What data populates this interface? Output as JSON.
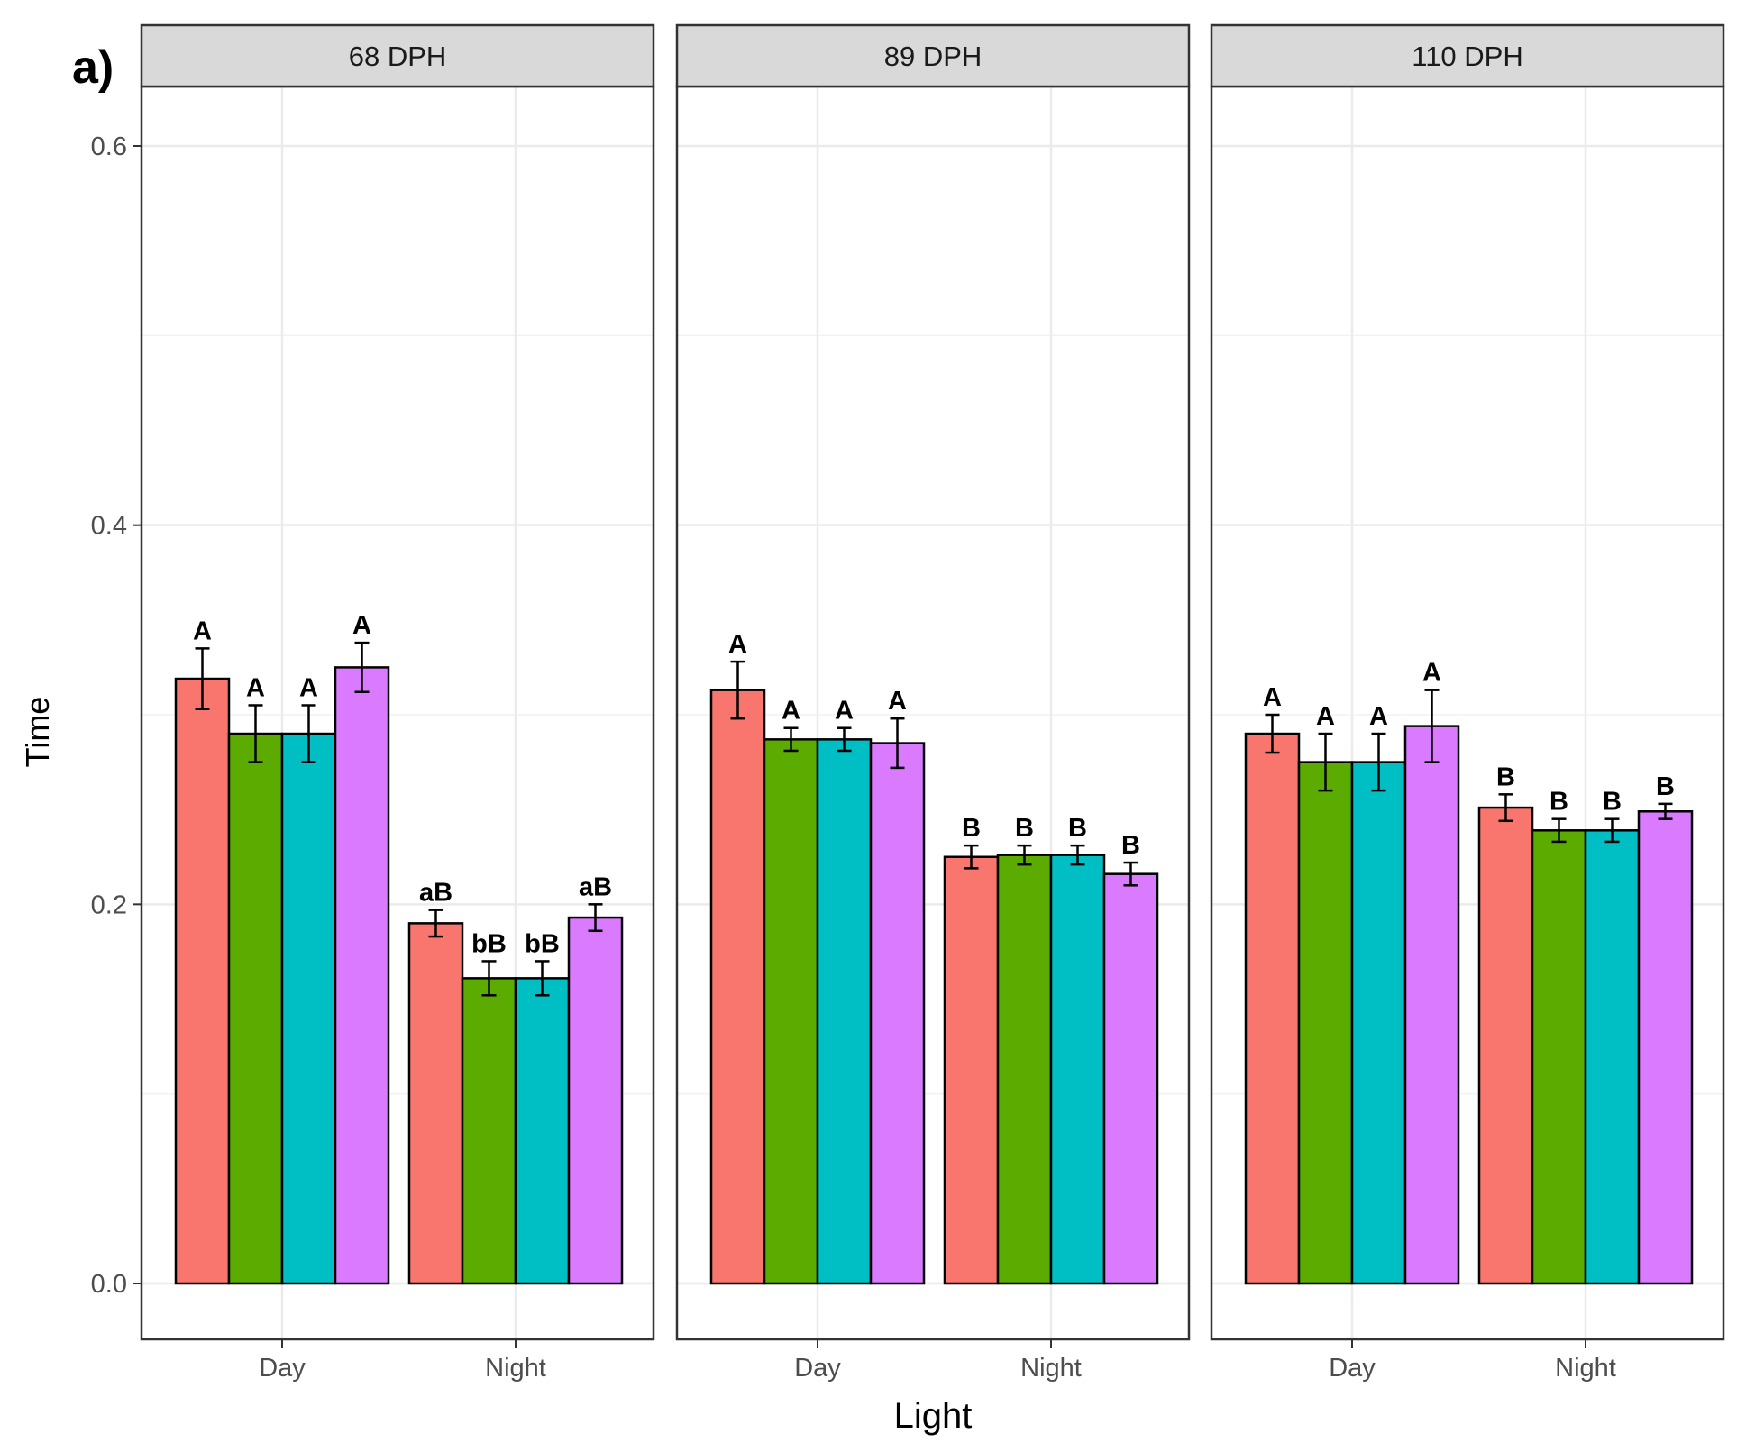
{
  "figure_label": "a)",
  "chart_data": {
    "type": "bar",
    "xlabel": "Light",
    "ylabel": "Time",
    "ylim": [
      0,
      0.63
    ],
    "yticks": [
      0.0,
      0.2,
      0.4,
      0.6
    ],
    "ytick_labels": [
      "0.0",
      "0.2",
      "0.4",
      "0.6"
    ],
    "categories": [
      "Day",
      "Night"
    ],
    "series_colors": [
      "#F8766D",
      "#5BAB00",
      "#00BFC4",
      "#D97AFF"
    ],
    "facets": [
      {
        "title": "68 DPH",
        "groups": [
          {
            "category": "Day",
            "values": [
              0.319,
              0.29,
              0.29,
              0.325
            ],
            "errors": [
              0.016,
              0.015,
              0.015,
              0.013
            ],
            "labels": [
              "A",
              "A",
              "A",
              "A"
            ]
          },
          {
            "category": "Night",
            "values": [
              0.19,
              0.161,
              0.161,
              0.193
            ],
            "errors": [
              0.007,
              0.009,
              0.009,
              0.007
            ],
            "labels": [
              "aB",
              "bB",
              "bB",
              "aB"
            ]
          }
        ]
      },
      {
        "title": "89 DPH",
        "groups": [
          {
            "category": "Day",
            "values": [
              0.313,
              0.287,
              0.287,
              0.285
            ],
            "errors": [
              0.015,
              0.006,
              0.006,
              0.013
            ],
            "labels": [
              "A",
              "A",
              "A",
              "A"
            ]
          },
          {
            "category": "Night",
            "values": [
              0.225,
              0.226,
              0.226,
              0.216
            ],
            "errors": [
              0.006,
              0.005,
              0.005,
              0.006
            ],
            "labels": [
              "B",
              "B",
              "B",
              "B"
            ]
          }
        ]
      },
      {
        "title": "110 DPH",
        "groups": [
          {
            "category": "Day",
            "values": [
              0.29,
              0.275,
              0.275,
              0.294
            ],
            "errors": [
              0.01,
              0.015,
              0.015,
              0.019
            ],
            "labels": [
              "A",
              "A",
              "A",
              "A"
            ]
          },
          {
            "category": "Night",
            "values": [
              0.251,
              0.239,
              0.239,
              0.249
            ],
            "errors": [
              0.007,
              0.006,
              0.006,
              0.004
            ],
            "labels": [
              "B",
              "B",
              "B",
              "B"
            ]
          }
        ]
      }
    ]
  }
}
